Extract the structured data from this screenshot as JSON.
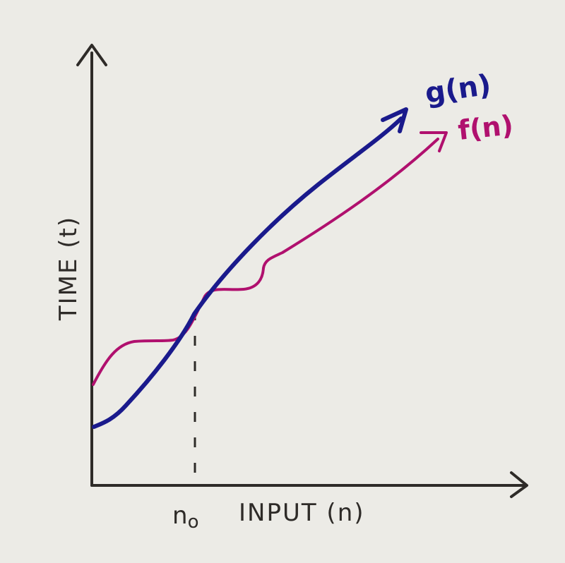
{
  "labels": {
    "y_axis": "TIME (t)",
    "x_axis": "INPUT (n)",
    "x_marker": "n",
    "x_marker_subscript": "o"
  },
  "curves": [
    {
      "id": "g",
      "label": "g(n)",
      "color": "#1a1a8c"
    },
    {
      "id": "f",
      "label": "f(n)",
      "color": "#b0106e"
    }
  ],
  "colors": {
    "background": "#ecebe6",
    "axis": "#2e2b28",
    "guide": "#2e2b28"
  }
}
